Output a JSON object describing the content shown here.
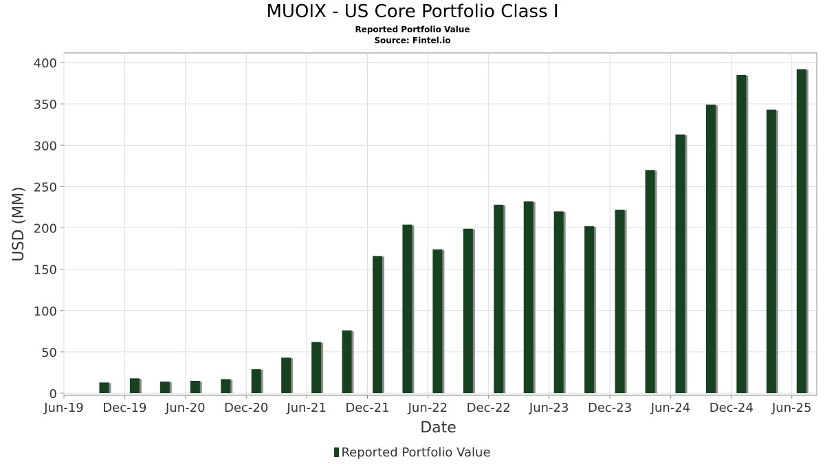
{
  "title": "MUOIX - US Core Portfolio Class I",
  "subtitle1": "Reported Portfolio Value",
  "subtitle2": "Source: Fintel.io",
  "colors": {
    "bar": "#17421f",
    "shadow": "#8c8c8c",
    "grid": "#dddddd",
    "frame": "#888888"
  },
  "chart_data": {
    "type": "bar",
    "xlabel": "Date",
    "ylabel": "USD (MM)",
    "ylim": [
      0,
      410
    ],
    "xlim": [
      "2019-06-01",
      "2025-08-15"
    ],
    "yticks": [
      0,
      50,
      100,
      150,
      200,
      250,
      300,
      350,
      400
    ],
    "xticks": [
      {
        "label": "Jun-19",
        "date": "2019-06-01"
      },
      {
        "label": "Dec-19",
        "date": "2019-12-01"
      },
      {
        "label": "Jun-20",
        "date": "2020-06-01"
      },
      {
        "label": "Dec-20",
        "date": "2020-12-01"
      },
      {
        "label": "Jun-21",
        "date": "2021-06-01"
      },
      {
        "label": "Dec-21",
        "date": "2021-12-01"
      },
      {
        "label": "Jun-22",
        "date": "2022-06-01"
      },
      {
        "label": "Dec-22",
        "date": "2022-12-01"
      },
      {
        "label": "Jun-23",
        "date": "2023-06-01"
      },
      {
        "label": "Dec-23",
        "date": "2023-12-01"
      },
      {
        "label": "Jun-24",
        "date": "2024-06-01"
      },
      {
        "label": "Dec-24",
        "date": "2024-12-01"
      },
      {
        "label": "Jun-25",
        "date": "2025-06-01"
      }
    ],
    "grid": true,
    "legend_position": "bottom-center",
    "series": [
      {
        "name": "Reported Portfolio Value",
        "x": [
          "2019-09-30",
          "2019-12-31",
          "2020-03-31",
          "2020-06-30",
          "2020-09-30",
          "2020-12-31",
          "2021-03-31",
          "2021-06-30",
          "2021-09-30",
          "2021-12-31",
          "2022-03-31",
          "2022-06-30",
          "2022-09-30",
          "2022-12-31",
          "2023-03-31",
          "2023-06-30",
          "2023-09-30",
          "2023-12-31",
          "2024-03-31",
          "2024-06-30",
          "2024-09-30",
          "2024-12-31",
          "2025-03-31",
          "2025-06-30"
        ],
        "values": [
          13,
          18,
          14,
          15,
          17,
          29,
          43,
          62,
          76,
          166,
          204,
          174,
          199,
          228,
          232,
          220,
          202,
          222,
          270,
          313,
          349,
          385,
          343,
          392
        ]
      }
    ]
  }
}
